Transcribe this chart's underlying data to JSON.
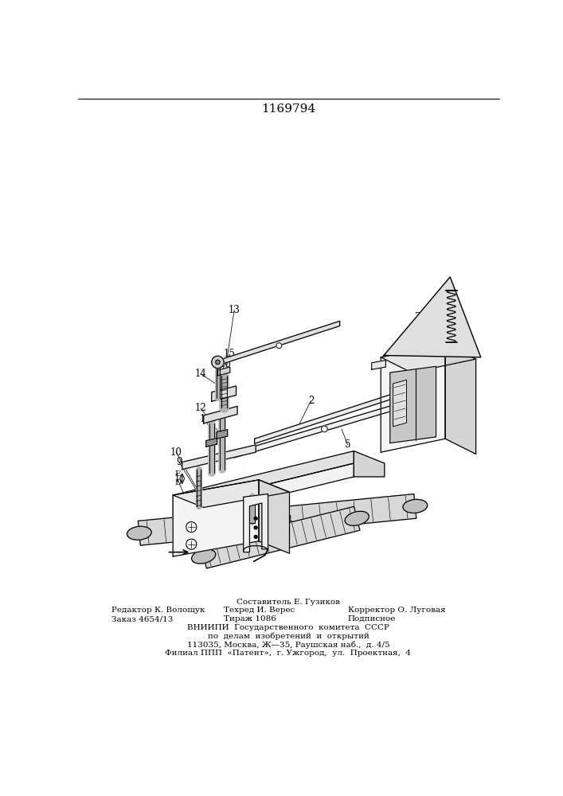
{
  "title": "1169794",
  "footer": {
    "l0": "Составитель Е. Гузиков",
    "l1l": "Редактор К. Волощук",
    "l1c": "Техред И. Верес",
    "l1r": "Корректор О. Луговая",
    "l2l": "Заказ 4654/13",
    "l2c": "Тираж 1086",
    "l2r": "Подписное",
    "l3": "ВНИИПИ  Государственного  комитета  СССР",
    "l4": "по  делам  изобретений  и  открытий",
    "l5": "113035, Москва, Ж—35, Раушская наб.,  д. 4/5",
    "l6": "Филиал ППП  «Патент»,  г. Ужгород,  ул.  Проектная,  4"
  }
}
